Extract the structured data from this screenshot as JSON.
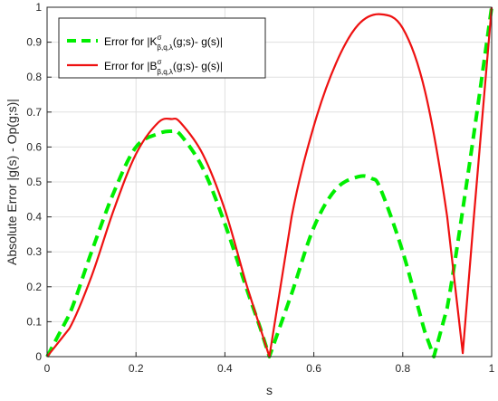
{
  "colors": {
    "series_1": "#00ee00",
    "series_2": "#ee1111",
    "axis": "#262626",
    "grid": "#dfdfdf"
  },
  "chart_data": {
    "type": "line",
    "title": "",
    "xlabel": "s",
    "ylabel": "Absolute Error |g(s) - Op(g;s)|",
    "xlim": [
      0,
      1
    ],
    "ylim": [
      0,
      1
    ],
    "xticks": [
      "0",
      "0.2",
      "0.4",
      "0.6",
      "0.8",
      "1"
    ],
    "yticks": [
      "0",
      "0.1",
      "0.2",
      "0.3",
      "0.4",
      "0.5",
      "0.6",
      "0.7",
      "0.8",
      "0.9",
      "1"
    ],
    "grid": true,
    "legend_position": "top-left",
    "legend": {
      "series_1": {
        "prefix": "Error for |K",
        "sup": "σ",
        "sub": "β,q,λ",
        "suffix": "(g;s)- g(s)|"
      },
      "series_2": {
        "prefix": "Error for |B",
        "sup": "σ",
        "sub": "β,q,λ",
        "suffix": "(g;s)- g(s)|"
      }
    },
    "series": [
      {
        "style": "dashed",
        "x": [
          0,
          0.05,
          0.1,
          0.15,
          0.2,
          0.25,
          0.28,
          0.3,
          0.35,
          0.4,
          0.45,
          0.48,
          0.5,
          0.55,
          0.6,
          0.65,
          0.7,
          0.73,
          0.75,
          0.8,
          0.85,
          0.87,
          0.9,
          0.95,
          1.0
        ],
        "y": [
          0,
          0.12,
          0.3,
          0.47,
          0.6,
          0.638,
          0.645,
          0.635,
          0.54,
          0.38,
          0.19,
          0.08,
          0.0,
          0.18,
          0.37,
          0.48,
          0.515,
          0.51,
          0.48,
          0.3,
          0.07,
          0.0,
          0.14,
          0.55,
          1.0
        ]
      },
      {
        "style": "solid",
        "x": [
          0,
          0.05,
          0.1,
          0.15,
          0.2,
          0.25,
          0.28,
          0.3,
          0.35,
          0.4,
          0.45,
          0.5,
          0.55,
          0.6,
          0.65,
          0.7,
          0.75,
          0.8,
          0.85,
          0.9,
          0.935,
          0.96,
          1.0
        ],
        "y": [
          0,
          0.08,
          0.23,
          0.42,
          0.58,
          0.67,
          0.68,
          0.67,
          0.58,
          0.42,
          0.2,
          0.0,
          0.4,
          0.66,
          0.84,
          0.95,
          0.98,
          0.94,
          0.76,
          0.4,
          0.01,
          0.4,
          1.0
        ]
      }
    ]
  }
}
